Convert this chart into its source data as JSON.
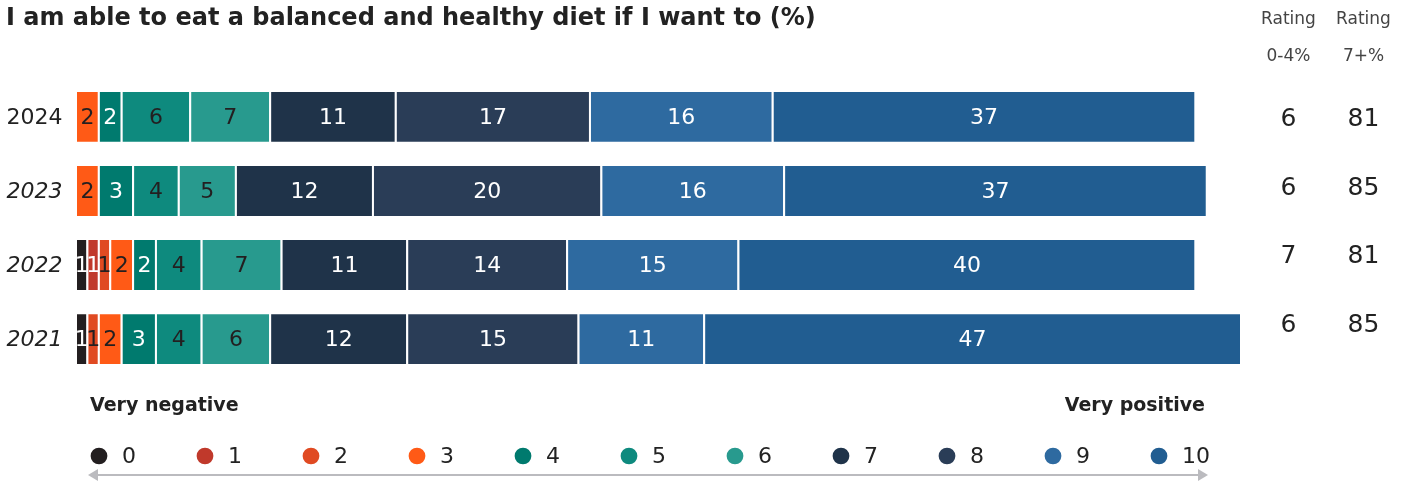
{
  "chart_data": {
    "type": "bar",
    "orientation": "horizontal",
    "stacked": true,
    "title": "I am able to eat a balanced and healthy diet if I want to (%)",
    "categories": [
      "2024",
      "2023",
      "2022",
      "2021"
    ],
    "series": [
      {
        "name": "0",
        "color": "#231f20",
        "values": [
          null,
          null,
          1,
          1
        ]
      },
      {
        "name": "1",
        "color": "#c0392b",
        "values": [
          null,
          null,
          1,
          null
        ]
      },
      {
        "name": "2",
        "color": "#e04a22",
        "values": [
          null,
          null,
          1,
          1
        ]
      },
      {
        "name": "3",
        "color": "#ff5a16",
        "values": [
          2,
          2,
          2,
          2
        ]
      },
      {
        "name": "4",
        "color": "#007a6e",
        "values": [
          2,
          3,
          2,
          3
        ]
      },
      {
        "name": "5",
        "color": "#0e8a7e",
        "values": [
          6,
          4,
          4,
          4
        ]
      },
      {
        "name": "6",
        "color": "#289a8e",
        "values": [
          7,
          5,
          7,
          6
        ]
      },
      {
        "name": "7",
        "color": "#1f3349",
        "values": [
          11,
          12,
          11,
          12
        ]
      },
      {
        "name": "8",
        "color": "#2a3d57",
        "values": [
          17,
          20,
          14,
          15
        ]
      },
      {
        "name": "9",
        "color": "#2e6aa0",
        "values": [
          16,
          16,
          15,
          11
        ]
      },
      {
        "name": "10",
        "color": "#215d91",
        "values": [
          37,
          37,
          40,
          47
        ]
      }
    ],
    "xlim": [
      0,
      102
    ],
    "tick_labels": "y",
    "data_labels": true,
    "legend": "bottom",
    "annotations": [
      "Rating 0-4%",
      "Rating 7+%",
      "Very negative",
      "Very positive",
      "6",
      "81",
      "6",
      "85",
      "7",
      "81",
      "6",
      "85"
    ]
  }
}
